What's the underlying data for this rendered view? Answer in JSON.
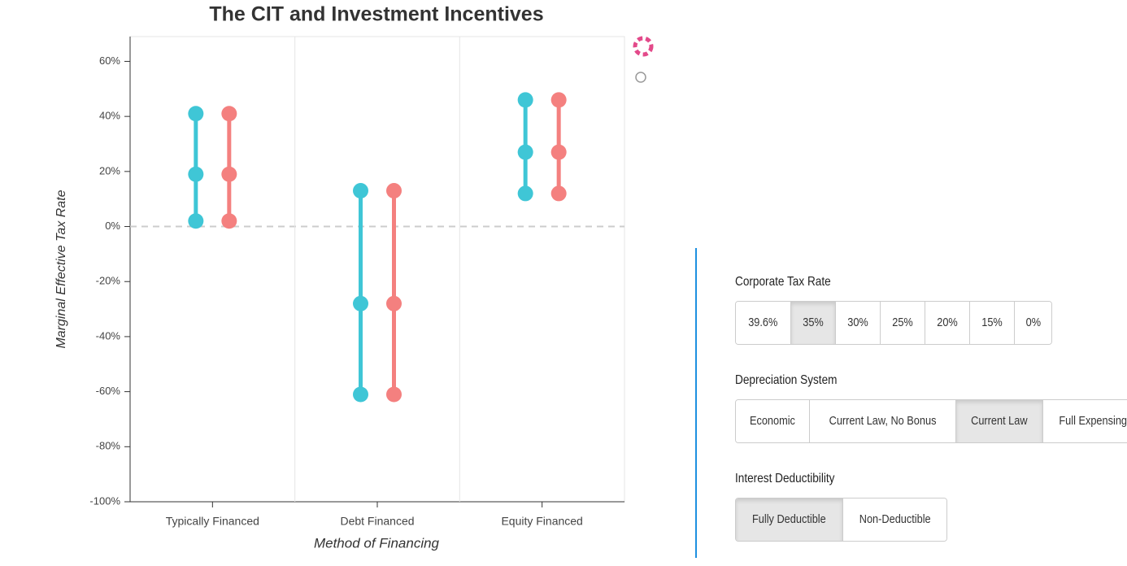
{
  "chart_data": {
    "type": "dumbbell",
    "title": "The CIT and Investment Incentives",
    "x_label": "Method of Financing",
    "y_label": "Marginal Effective Tax Rate",
    "categories": [
      "Typically Financed",
      "Debt Financed",
      "Equity Financed"
    ],
    "series": [
      {
        "color": "#3fc6d6",
        "high": [
          41,
          13,
          46
        ],
        "mid": [
          19,
          -28,
          27
        ],
        "low": [
          2,
          -61,
          12
        ]
      },
      {
        "color": "#f4807f",
        "high": [
          41,
          13,
          46
        ],
        "mid": [
          19,
          -28,
          27
        ],
        "low": [
          2,
          -61,
          12
        ]
      }
    ],
    "ylim": [
      -100,
      69
    ],
    "yticks": [
      {
        "value": -100,
        "label": "-100%"
      },
      {
        "value": -80,
        "label": "-80%"
      },
      {
        "value": -60,
        "label": "-60%"
      },
      {
        "value": -40,
        "label": "-40%"
      },
      {
        "value": -20,
        "label": "-20%"
      },
      {
        "value": 0,
        "label": "0%"
      },
      {
        "value": 20,
        "label": "20%"
      },
      {
        "value": 40,
        "label": "40%"
      },
      {
        "value": 60,
        "label": "60%"
      }
    ],
    "zero_line": true,
    "grid": "x"
  },
  "controls": [
    {
      "label": "Corporate Tax Rate",
      "options": [
        "39.6%",
        "35%",
        "30%",
        "25%",
        "20%",
        "15%",
        "0%"
      ],
      "selected": 1
    },
    {
      "label": "Depreciation System",
      "options": [
        "Economic",
        "Current Law, No Bonus",
        "Current Law",
        "Full Expensing"
      ],
      "selected": 2
    },
    {
      "label": "Interest Deductibility",
      "options": [
        "Fully Deductible",
        "Non-Deductible"
      ],
      "selected": 0
    }
  ]
}
